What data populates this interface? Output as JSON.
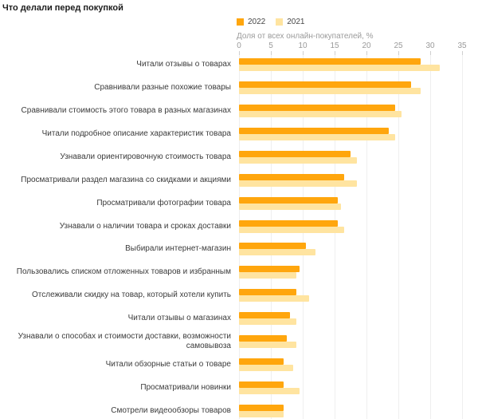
{
  "title": "Что делали перед покупкой",
  "axis": {
    "label": "Доля от всех онлайн-покупателей, %",
    "ticks": [
      "0",
      "5",
      "10",
      "15",
      "20",
      "25",
      "30",
      "35"
    ]
  },
  "colors": {
    "series_2022": "#ffa60d",
    "series_2021": "#ffe4a0",
    "gridline": "#efefef",
    "tick_text": "#9a9a9a",
    "label_text": "#3b3b3b"
  },
  "chart_data": {
    "type": "bar",
    "orientation": "horizontal",
    "title": "Что делали перед покупкой",
    "xlabel": "Доля от всех онлайн-покупателей, %",
    "xlim": [
      0,
      35
    ],
    "xticks": [
      0,
      5,
      10,
      15,
      20,
      25,
      30,
      35
    ],
    "grid": true,
    "legend_position": "top",
    "categories": [
      "Читали отзывы о товарах",
      "Сравнивали разные похожие товары",
      "Сравнивали стоимость этого товара в разных магазинах",
      "Читали подробное описание характеристик товара",
      "Узнавали ориентировочную стоимость товара",
      "Просматривали раздел магазина со скидками и акциями",
      "Просматривали фотографии товара",
      "Узнавали о наличии товара и сроках доставки",
      "Выбирали интернет-магазин",
      "Пользовались списком отложенных товаров и избранным",
      "Отслеживали скидку на товар, который хотели купить",
      "Читали отзывы о магазинах",
      "Узнавали о способах и стоимости доставки, возможности самовывоза",
      "Читали обзорные статьи о товаре",
      "Просматривали новинки",
      "Смотрели видеообзоры товаров"
    ],
    "series": [
      {
        "name": "2022",
        "color": "#ffa60d",
        "values": [
          28.5,
          27,
          24.5,
          23.5,
          17.5,
          16.5,
          15.5,
          15.5,
          10.5,
          9.5,
          9,
          8,
          7.5,
          7,
          7,
          7
        ]
      },
      {
        "name": "2021",
        "color": "#ffe4a0",
        "values": [
          31.5,
          28.5,
          25.5,
          24.5,
          18.5,
          18.5,
          16,
          16.5,
          12,
          9,
          11,
          9,
          9,
          8.5,
          9.5,
          7
        ]
      }
    ]
  }
}
